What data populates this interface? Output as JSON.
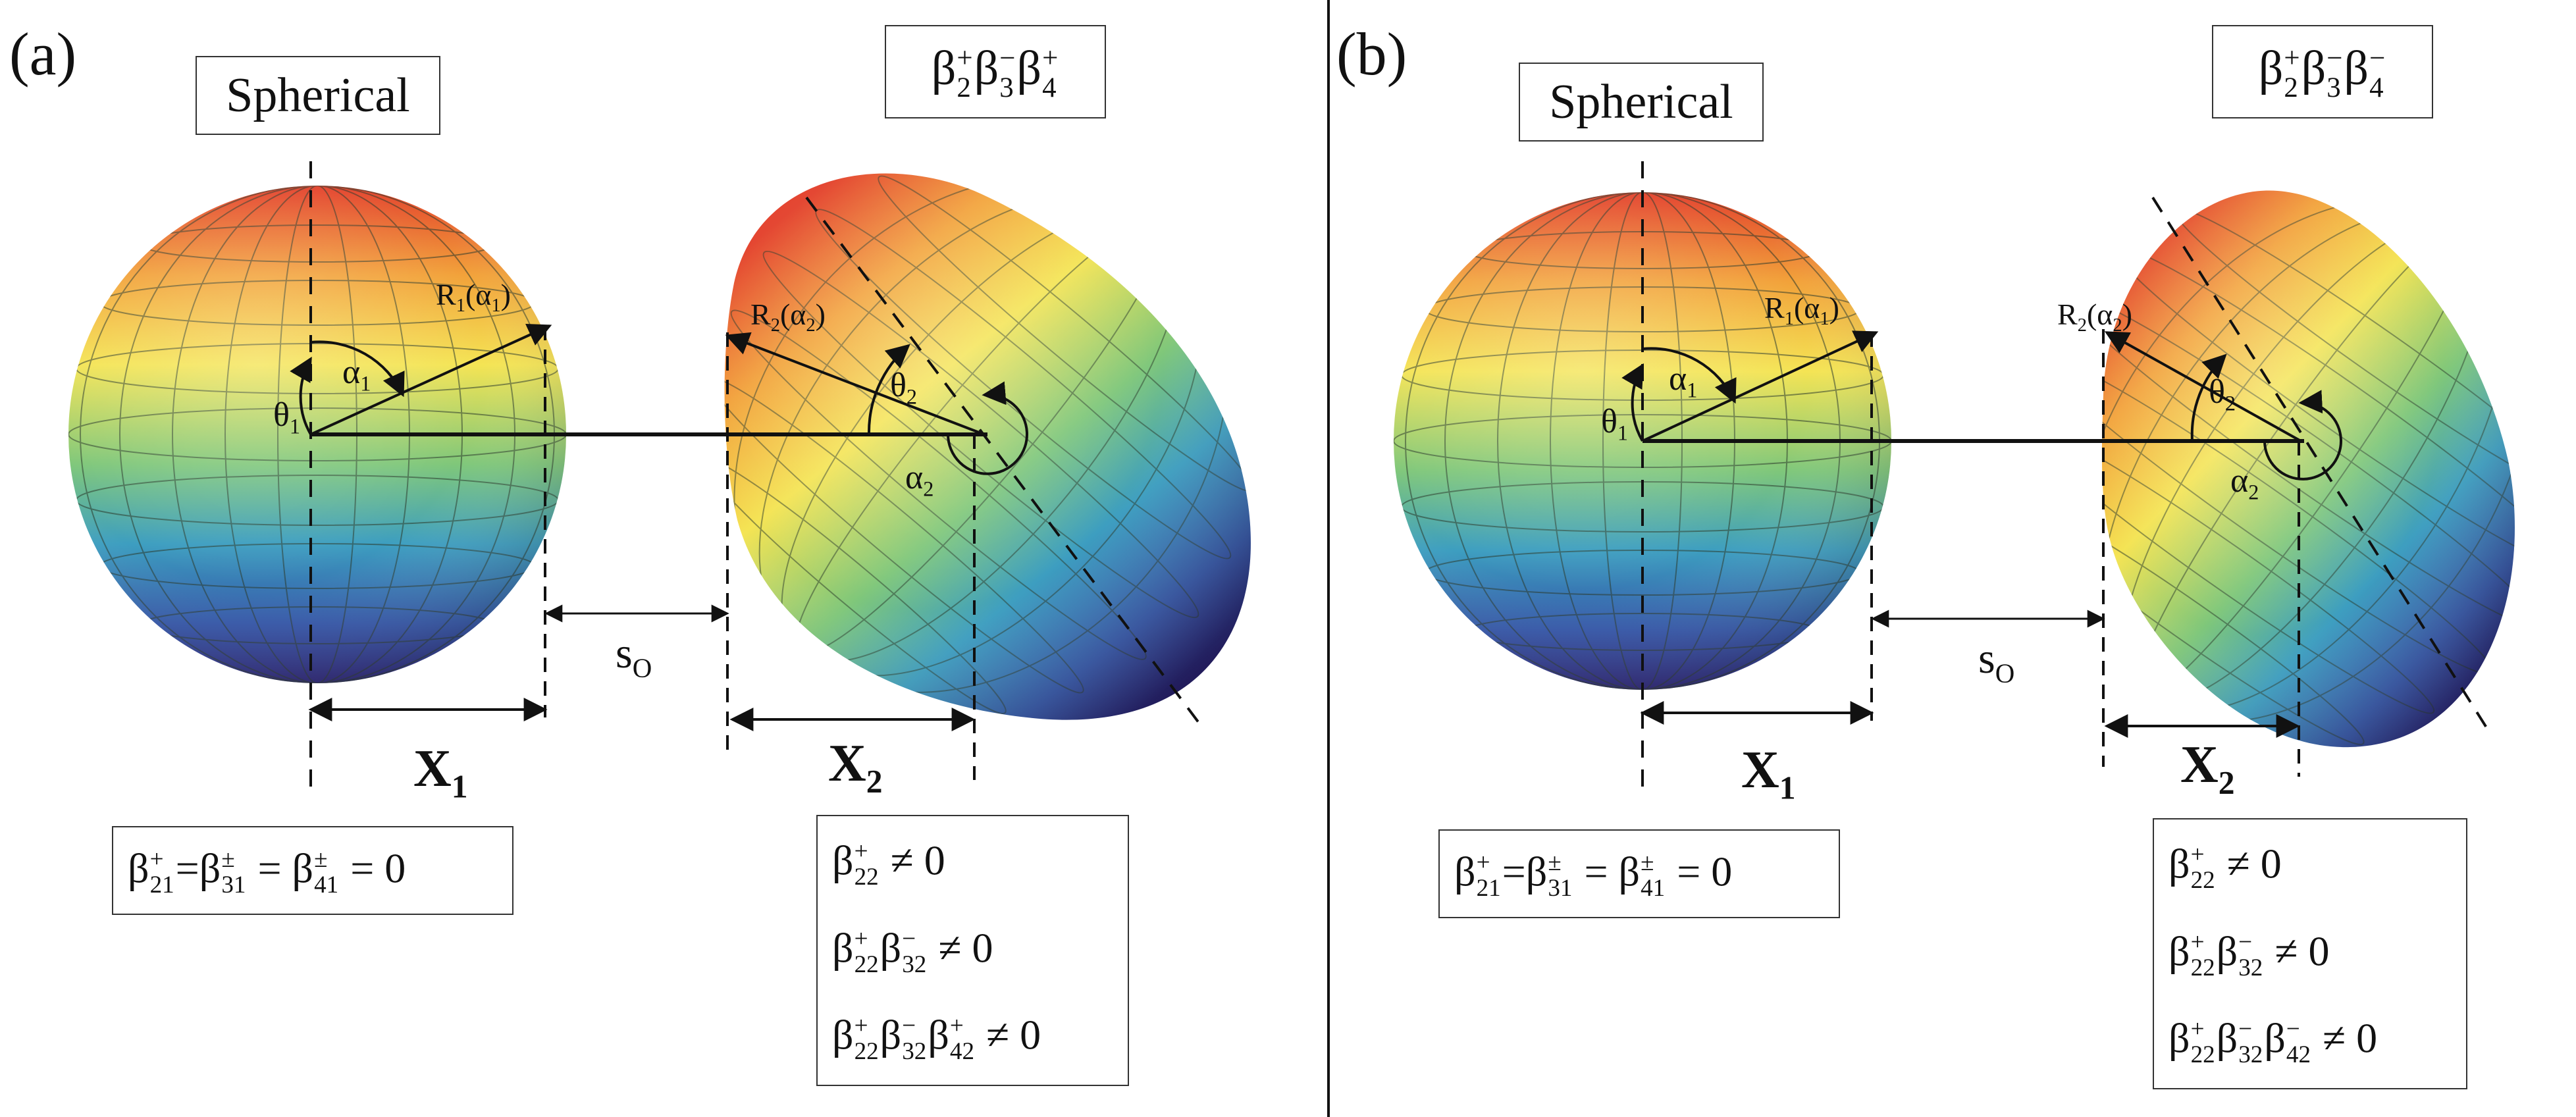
{
  "panels": [
    {
      "letter": "(a)",
      "left_header": "Spherical",
      "right_header_parts": [
        {
          "g": "β",
          "sup": "+",
          "sub": "2"
        },
        {
          "g": "β",
          "sup": "−",
          "sub": "3"
        },
        {
          "g": "β",
          "sup": "+",
          "sub": "4"
        }
      ],
      "labels": {
        "alpha1": "α",
        "alpha1_sub": "1",
        "theta1": "θ",
        "theta1_sub": "1",
        "r1": "R",
        "r1_sub": "1",
        "r1_arg": "(α",
        "r1_arg_sub": "1",
        "r1_close": ")",
        "r2": "R",
        "r2_sub": "2",
        "r2_arg": "(α",
        "r2_arg_sub": "2",
        "r2_close": ")",
        "theta2": "θ",
        "theta2_sub": "2",
        "alpha2": "α",
        "alpha2_sub": "2",
        "s_main": "s",
        "s_sub": "O",
        "x1_main": "X",
        "x1_sub": "1",
        "x2_main": "X",
        "x2_sub": "2"
      },
      "left_condition": {
        "t1": "β",
        "t1_sup": "+",
        "t1_sub": "21",
        "t2": "=β",
        "t2_sup": "±",
        "t2_sub": "31",
        "t3": " = β",
        "t3_sup": "±",
        "t3_sub": "41",
        "tail": " = 0"
      },
      "right_conditions": [
        {
          "parts": [
            {
              "g": "β",
              "sup": "+",
              "sub": "22"
            }
          ],
          "tail": " ≠ 0"
        },
        {
          "parts": [
            {
              "g": "β",
              "sup": "+",
              "sub": "22"
            },
            {
              "g": "β",
              "sup": "−",
              "sub": "32"
            }
          ],
          "tail": " ≠ 0"
        },
        {
          "parts": [
            {
              "g": "β",
              "sup": "+",
              "sub": "22"
            },
            {
              "g": "β",
              "sup": "−",
              "sub": "32"
            },
            {
              "g": "β",
              "sup": "+",
              "sub": "42"
            }
          ],
          "tail": " ≠ 0"
        }
      ]
    },
    {
      "letter": "(b)",
      "left_header": "Spherical",
      "right_header_parts": [
        {
          "g": "β",
          "sup": "+",
          "sub": "2"
        },
        {
          "g": "β",
          "sup": "−",
          "sub": "3"
        },
        {
          "g": "β",
          "sup": "−",
          "sub": "4"
        }
      ],
      "labels": {
        "alpha1": "α",
        "alpha1_sub": "1",
        "theta1": "θ",
        "theta1_sub": "1",
        "r1": "R",
        "r1_sub": "1",
        "r1_arg": "(α",
        "r1_arg_sub": "1",
        "r1_close": ")",
        "r2": "R",
        "r2_sub": "2",
        "r2_arg": "(α",
        "r2_arg_sub": "2",
        "r2_close": ")",
        "theta2": "θ",
        "theta2_sub": "2",
        "alpha2": "α",
        "alpha2_sub": "2",
        "s_main": "s",
        "s_sub": "O",
        "x1_main": "X",
        "x1_sub": "1",
        "x2_main": "X",
        "x2_sub": "2"
      },
      "left_condition": {
        "t1": "β",
        "t1_sup": "+",
        "t1_sub": "21",
        "t2": "=β",
        "t2_sup": "±",
        "t2_sub": "31",
        "t3": " = β",
        "t3_sup": "±",
        "t3_sub": "41",
        "tail": " = 0"
      },
      "right_conditions": [
        {
          "parts": [
            {
              "g": "β",
              "sup": "+",
              "sub": "22"
            }
          ],
          "tail": " ≠ 0"
        },
        {
          "parts": [
            {
              "g": "β",
              "sup": "+",
              "sub": "22"
            },
            {
              "g": "β",
              "sup": "−",
              "sub": "32"
            }
          ],
          "tail": " ≠ 0"
        },
        {
          "parts": [
            {
              "g": "β",
              "sup": "+",
              "sub": "22"
            },
            {
              "g": "β",
              "sup": "−",
              "sub": "32"
            },
            {
              "g": "β",
              "sup": "−",
              "sub": "42"
            }
          ],
          "tail": " ≠ 0"
        }
      ]
    }
  ],
  "colors": {
    "surface_top": "#e3412c",
    "surface_orange": "#f2a23a",
    "surface_yellow": "#f4e454",
    "surface_green": "#7fc77a",
    "surface_teal": "#3d9ec0",
    "surface_blue": "#3456a8",
    "surface_bottom": "#2c2476",
    "mesh": "#2b3a2b",
    "ink": "#111111"
  }
}
